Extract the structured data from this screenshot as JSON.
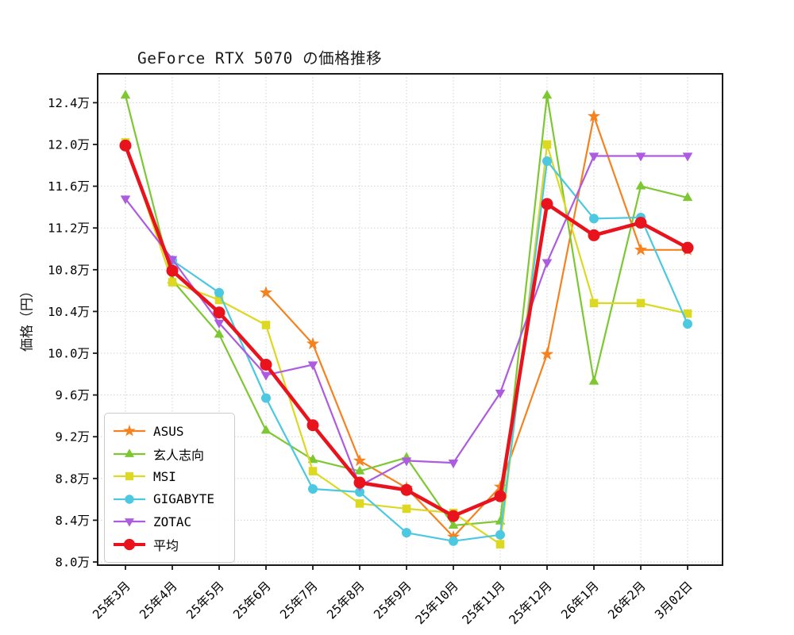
{
  "chart": {
    "title": "GeForce RTX 5070 の価格推移",
    "ylabel": "価格（円）"
  },
  "chart_data": {
    "type": "line",
    "title": "GeForce RTX 5070 の価格推移",
    "xlabel": "",
    "ylabel": "価格（円）",
    "unit": "万円",
    "grid": "dotted",
    "legend_position": "lower left",
    "ylim": [
      7.97,
      12.68
    ],
    "categories": [
      "25年3月",
      "25年4月",
      "25年5月",
      "25年6月",
      "25年7月",
      "25年8月",
      "25年9月",
      "25年10月",
      "25年11月",
      "25年12月",
      "26年1月",
      "26年2月",
      "3月02日"
    ],
    "y_ticks": [
      "8.0万",
      "8.4万",
      "8.8万",
      "9.2万",
      "9.6万",
      "10.0万",
      "10.4万",
      "10.8万",
      "11.2万",
      "11.6万",
      "12.0万",
      "12.4万"
    ],
    "series": [
      {
        "name": "ASUS",
        "color": "#f5821f",
        "marker": "star",
        "marker_size": 17,
        "line_width": 2.2,
        "values": [
          null,
          null,
          null,
          10.58,
          10.09,
          8.97,
          8.71,
          8.24,
          8.72,
          9.99,
          12.27,
          10.99,
          10.99
        ]
      },
      {
        "name": "玄人志向",
        "color": "#7dc832",
        "marker": "triangle-up",
        "marker_size": 14,
        "line_width": 2.2,
        "values": [
          12.47,
          10.7,
          10.18,
          9.26,
          8.98,
          8.87,
          9.0,
          8.35,
          8.39,
          12.47,
          9.73,
          11.6,
          11.49
        ]
      },
      {
        "name": "MSI",
        "color": "#ddd821",
        "marker": "square",
        "marker_size": 11.5,
        "line_width": 2.2,
        "values": [
          12.02,
          10.68,
          10.51,
          10.27,
          8.87,
          8.56,
          8.51,
          8.47,
          8.17,
          12.0,
          10.48,
          10.48,
          10.38
        ]
      },
      {
        "name": "GIGABYTE",
        "color": "#4cc8e0",
        "marker": "circle",
        "marker_size": 12,
        "line_width": 2.2,
        "values": [
          null,
          10.89,
          10.58,
          9.57,
          8.7,
          8.67,
          8.28,
          8.2,
          8.26,
          11.84,
          11.29,
          11.3,
          10.28
        ]
      },
      {
        "name": "ZOTAC",
        "color": "#ad5ce0",
        "marker": "triangle-down",
        "marker_size": 14,
        "line_width": 2.2,
        "values": [
          11.48,
          10.9,
          10.29,
          9.79,
          9.89,
          8.73,
          8.97,
          8.95,
          9.62,
          10.87,
          11.89,
          11.89,
          11.89
        ]
      },
      {
        "name": "平均",
        "color": "#e8131c",
        "marker": "circle",
        "marker_size": 15,
        "line_width": 4.5,
        "values": [
          11.99,
          10.79,
          10.39,
          9.89,
          9.31,
          8.76,
          8.69,
          8.44,
          8.63,
          11.43,
          11.13,
          11.25,
          11.01
        ]
      }
    ]
  }
}
